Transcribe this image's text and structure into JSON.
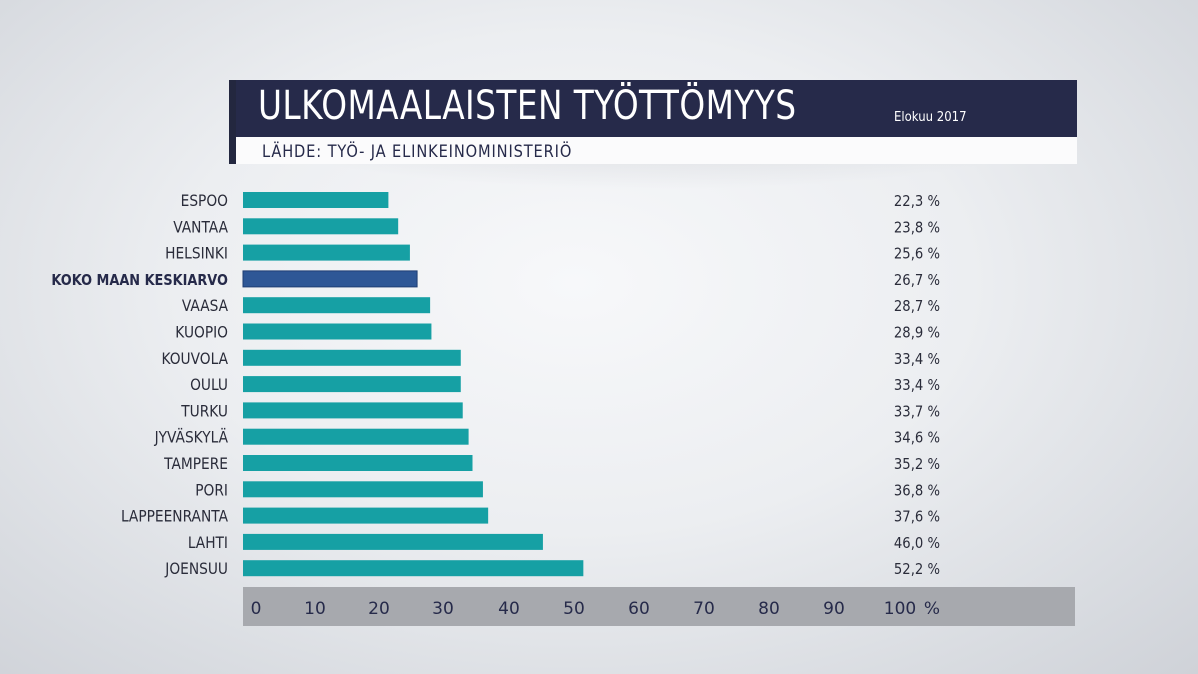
{
  "header": {
    "title": "ULKOMAALAISTEN TYÖTTÖMYYS",
    "date": "Elokuu 2017",
    "source": "LÄHDE: TYÖ- JA ELINKEINOMINISTERIÖ"
  },
  "colors": {
    "bar": "#16a0a4",
    "highlight_bar": "#2e5796",
    "title_bg": "#262a4a",
    "axis_bg": "#a7a9ae"
  },
  "chart_data": {
    "type": "bar",
    "orientation": "horizontal",
    "categories": [
      "ESPOO",
      "VANTAA",
      "HELSINKI",
      "KOKO MAAN KESKIARVO",
      "VAASA",
      "KUOPIO",
      "KOUVOLA",
      "OULU",
      "TURKU",
      "JYVÄSKYLÄ",
      "TAMPERE",
      "PORI",
      "LAPPEENRANTA",
      "LAHTI",
      "JOENSUU"
    ],
    "values": [
      22.3,
      23.8,
      25.6,
      26.7,
      28.7,
      28.9,
      33.4,
      33.4,
      33.7,
      34.6,
      35.2,
      36.8,
      37.6,
      46.0,
      52.2
    ],
    "value_labels": [
      "22,3  %",
      "23,8 %",
      "25,6 %",
      "26,7 %",
      "28,7 %",
      "28,9 %",
      "33,4 %",
      "33,4 %",
      "33,7 %",
      "34,6 %",
      "35,2 %",
      "36,8 %",
      "37,6 %",
      "46,0 %",
      "52,2 %"
    ],
    "highlight": "KOKO MAAN KESKIARVO",
    "xlim": [
      0,
      100
    ],
    "x_ticks": [
      "0",
      "10",
      "20",
      "30",
      "40",
      "50",
      "60",
      "70",
      "80",
      "90",
      "100"
    ],
    "x_unit": "%",
    "grid": false
  }
}
